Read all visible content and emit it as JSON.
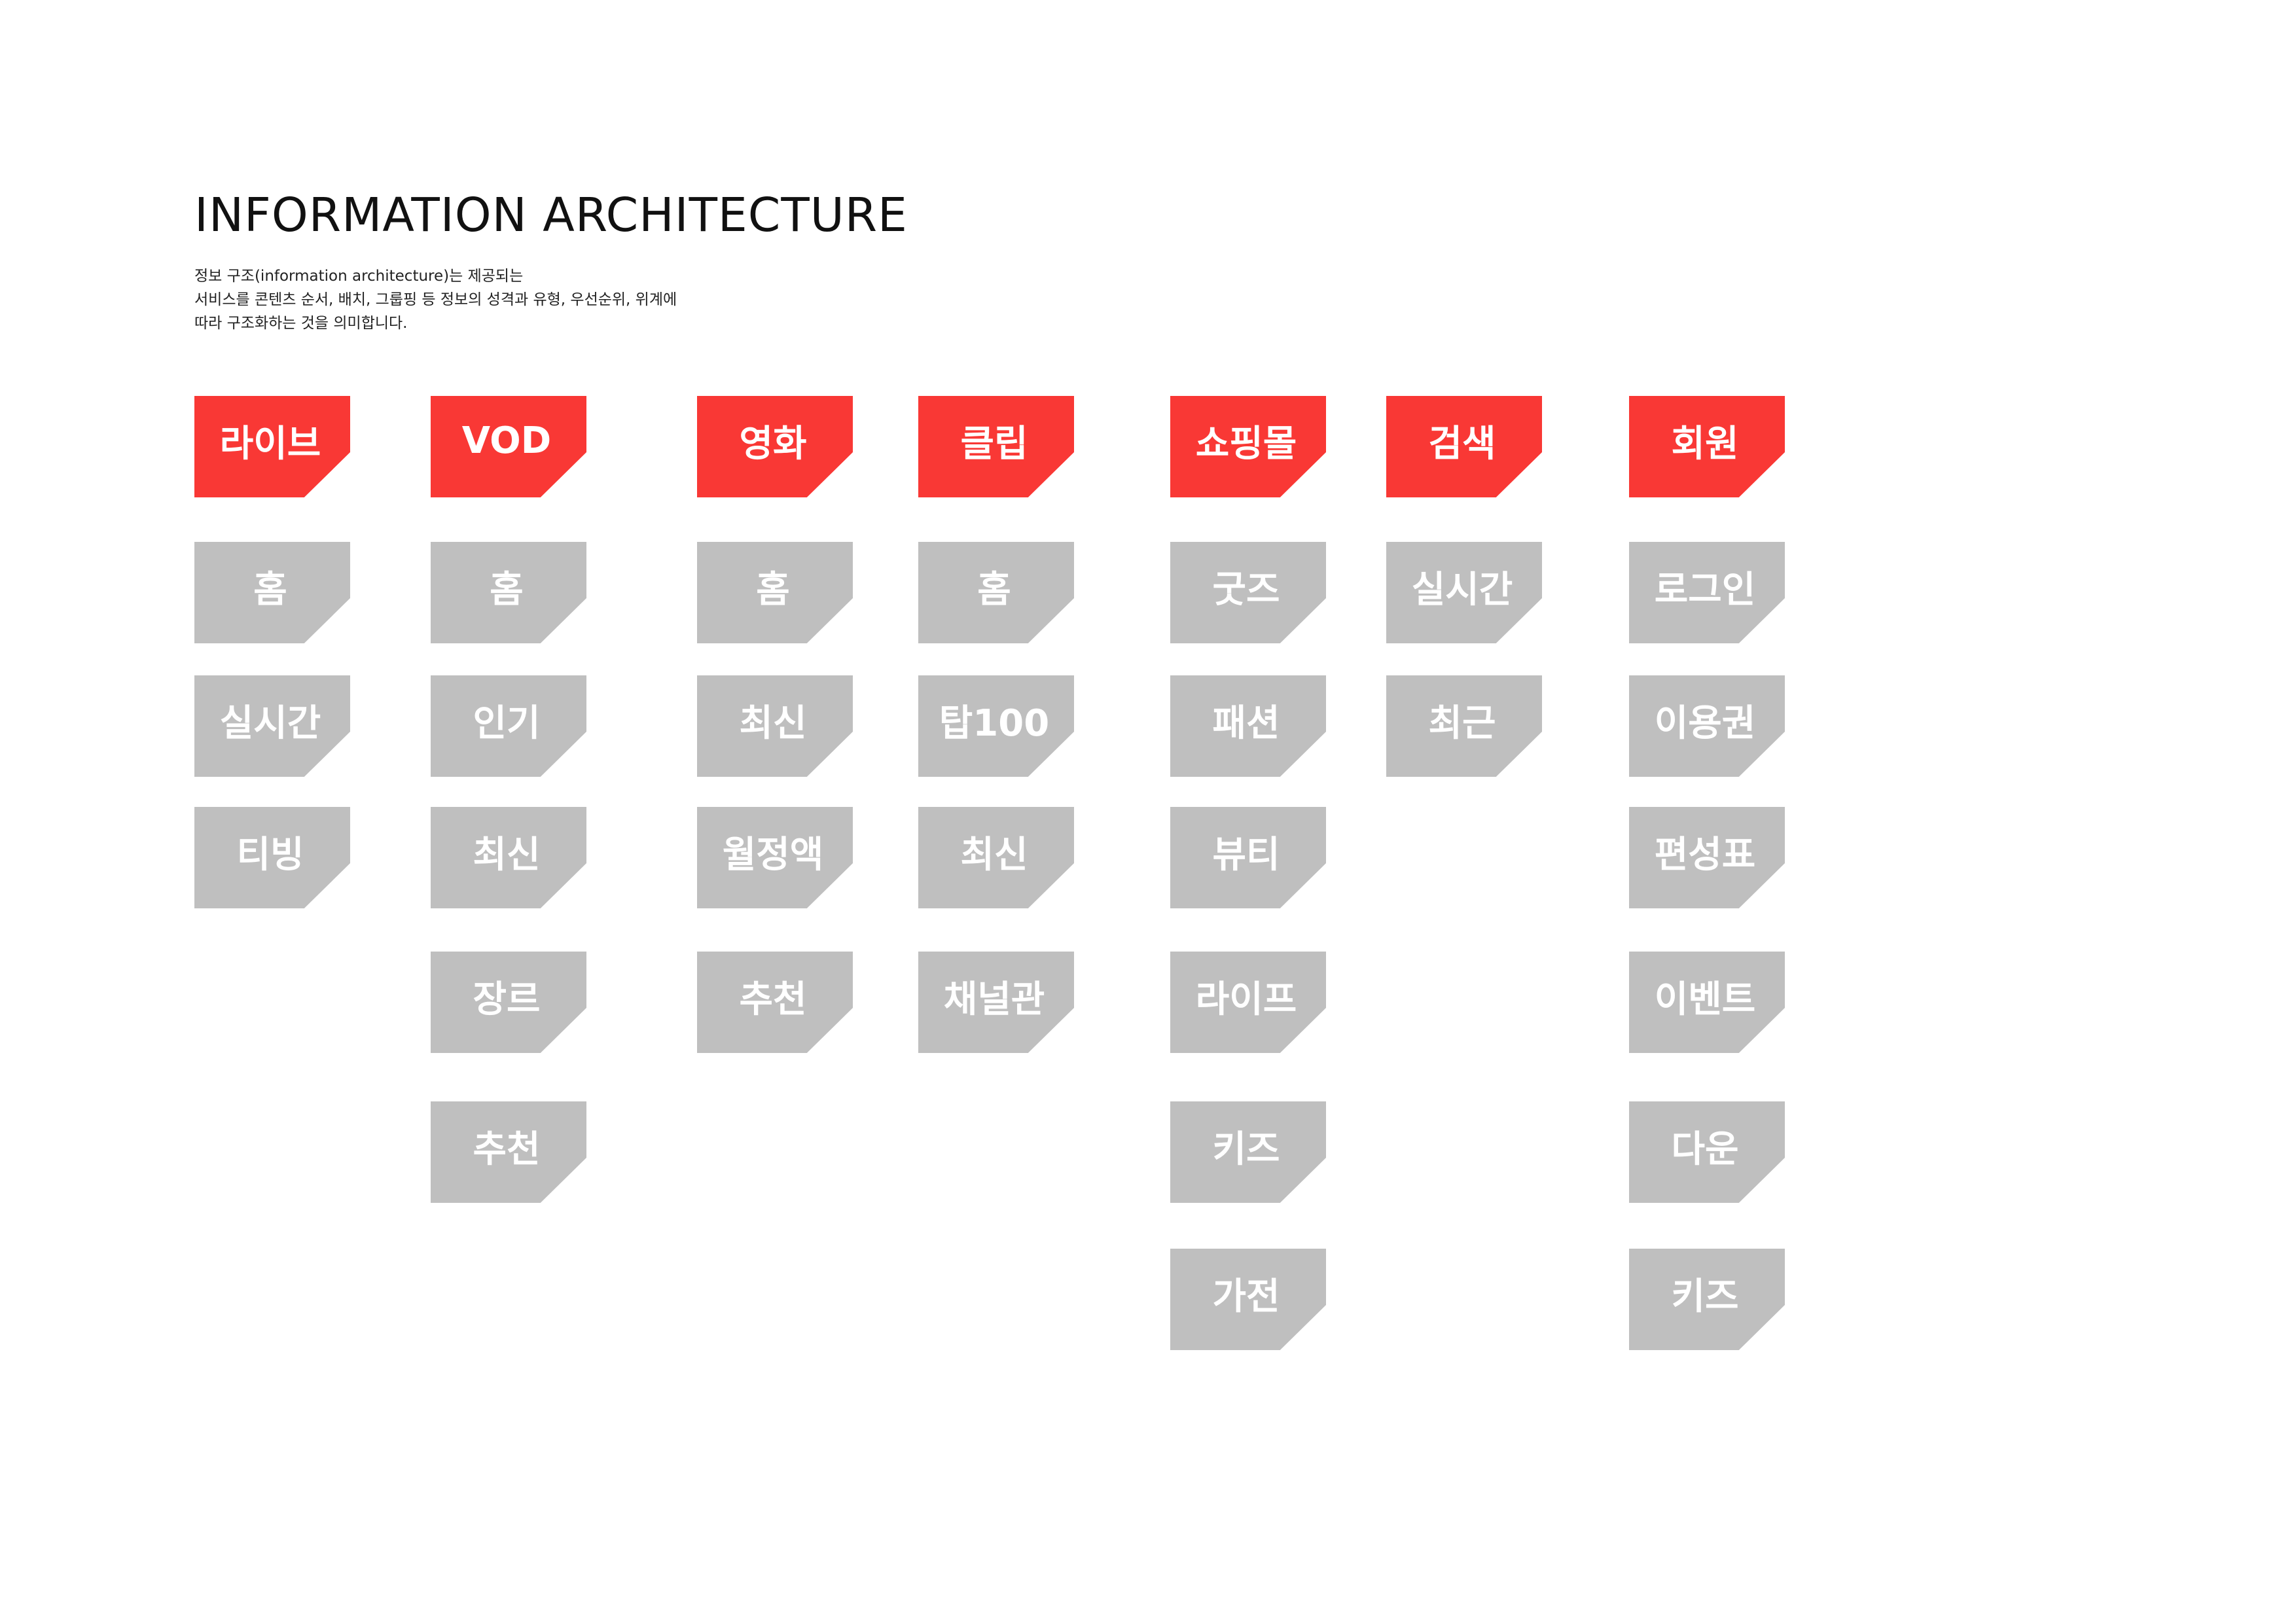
{
  "title": "INFORMATION ARCHITECTURE",
  "description": [
    "정보 구조(information architecture)는 제공되는",
    "서비스를 콘텐츠 순서, 배치, 그룹핑 등 정보의 성격과 유형, 우선순위, 위계에",
    "따라 구조화하는 것을 의미합니다."
  ],
  "colors": {
    "category": "#f93835",
    "item": "#bfbfbf",
    "label": "#ffffff",
    "title": "#111111"
  },
  "columns": [
    {
      "category": "라이브",
      "items": [
        "홈",
        "실시간",
        "티빙"
      ]
    },
    {
      "category": "VOD",
      "items": [
        "홈",
        "인기",
        "최신",
        "장르",
        "추천"
      ]
    },
    {
      "category": "영화",
      "items": [
        "홈",
        "최신",
        "월정액",
        "추천"
      ]
    },
    {
      "category": "클립",
      "items": [
        "홈",
        "탑100",
        "최신",
        "채널관"
      ]
    },
    {
      "category": "쇼핑몰",
      "items": [
        "굿즈",
        "패션",
        "뷰티",
        "라이프",
        "키즈",
        "가전"
      ]
    },
    {
      "category": "검색",
      "items": [
        "실시간",
        "최근"
      ]
    },
    {
      "category": "회원",
      "items": [
        "로그인",
        "이용권",
        "편성표",
        "이벤트",
        "다운",
        "키즈"
      ]
    }
  ]
}
